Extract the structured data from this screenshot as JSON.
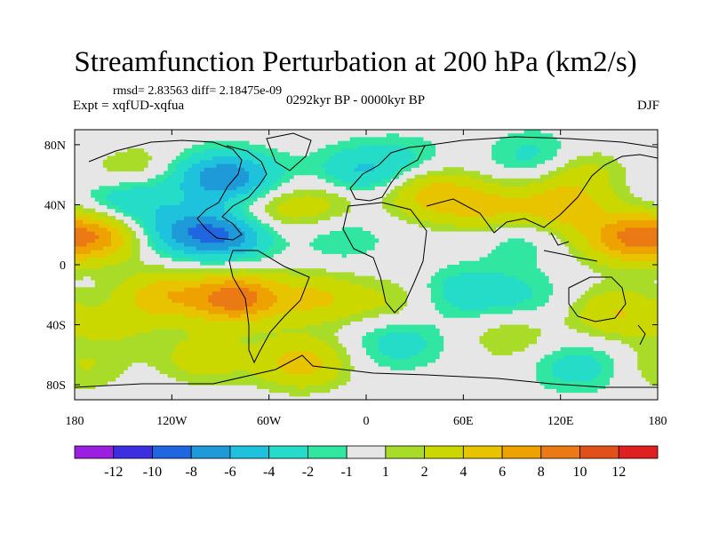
{
  "title": "Streamfunction Perturbation at 200 hPa (km2/s)",
  "stats_line": "rmsd= 2.83563 diff= 2.18475e-09",
  "experiment_line": "Expt = xqfUD-xqfua",
  "period_line": "0292kyr BP - 0000kyr BP",
  "season": "DJF",
  "chart_data": {
    "type": "heatmap",
    "title": "Streamfunction Perturbation at 200 hPa (km2/s)",
    "xlim": [
      -180,
      180
    ],
    "ylim": [
      -90,
      90
    ],
    "x_ticks": [
      {
        "value": -180,
        "label": "180"
      },
      {
        "value": -120,
        "label": "120W"
      },
      {
        "value": -60,
        "label": "60W"
      },
      {
        "value": 0,
        "label": "0"
      },
      {
        "value": 60,
        "label": "60E"
      },
      {
        "value": 120,
        "label": "120E"
      },
      {
        "value": 180,
        "label": "180"
      }
    ],
    "y_ticks": [
      {
        "value": 80,
        "label": "80N"
      },
      {
        "value": 40,
        "label": "40N"
      },
      {
        "value": 0,
        "label": "0"
      },
      {
        "value": -40,
        "label": "40S"
      },
      {
        "value": -80,
        "label": "80S"
      }
    ],
    "levels": [
      -12,
      -10,
      -8,
      -6,
      -4,
      -2,
      -1,
      1,
      2,
      4,
      6,
      8,
      10,
      12
    ],
    "level_labels": [
      "-12",
      "-10",
      "-8",
      "-6",
      "-4",
      "-2",
      "-1",
      "1",
      "2",
      "4",
      "6",
      "8",
      "10",
      "12"
    ],
    "colors": [
      "#9b1fe0",
      "#3b2fe0",
      "#1f66e0",
      "#1e9ad8",
      "#1ec2dc",
      "#24dcc8",
      "#30e6a0",
      "#e6e6e6",
      "#a8dc28",
      "#cad800",
      "#e8c400",
      "#eea200",
      "#ec7a14",
      "#e2501a",
      "#e02020"
    ],
    "field_centers": [
      {
        "lon": -165,
        "lat": 20,
        "value": 7
      },
      {
        "lon": 160,
        "lat": 18,
        "value": 7
      },
      {
        "lon": -148,
        "lat": 42,
        "value": -4
      },
      {
        "lon": -150,
        "lat": 68,
        "value": 3.5
      },
      {
        "lon": -95,
        "lat": 58,
        "value": -5
      },
      {
        "lon": -75,
        "lat": 58,
        "value": -4
      },
      {
        "lon": -85,
        "lat": 20,
        "value": -7
      },
      {
        "lon": -115,
        "lat": 22,
        "value": -5
      },
      {
        "lon": -60,
        "lat": 36,
        "value": 3
      },
      {
        "lon": -25,
        "lat": 42,
        "value": 2.5
      },
      {
        "lon": -5,
        "lat": 62,
        "value": -4
      },
      {
        "lon": 25,
        "lat": 70,
        "value": -2
      },
      {
        "lon": 40,
        "lat": 48,
        "value": 5
      },
      {
        "lon": 75,
        "lat": 38,
        "value": 4
      },
      {
        "lon": 120,
        "lat": 38,
        "value": 5
      },
      {
        "lon": 130,
        "lat": 62,
        "value": 3
      },
      {
        "lon": 105,
        "lat": 72,
        "value": -3
      },
      {
        "lon": -160,
        "lat": 76,
        "value": -2
      },
      {
        "lon": -15,
        "lat": 18,
        "value": -2
      },
      {
        "lon": 95,
        "lat": 18,
        "value": -2
      },
      {
        "lon": -80,
        "lat": -22,
        "value": 9
      },
      {
        "lon": -125,
        "lat": -20,
        "value": 5
      },
      {
        "lon": -155,
        "lat": -40,
        "value": 2
      },
      {
        "lon": -30,
        "lat": -22,
        "value": 4
      },
      {
        "lon": 15,
        "lat": -25,
        "value": 2
      },
      {
        "lon": 60,
        "lat": -18,
        "value": -3
      },
      {
        "lon": 95,
        "lat": -20,
        "value": -2
      },
      {
        "lon": 155,
        "lat": -32,
        "value": 4
      },
      {
        "lon": 90,
        "lat": -48,
        "value": 2
      },
      {
        "lon": 20,
        "lat": -52,
        "value": -3
      },
      {
        "lon": -40,
        "lat": -65,
        "value": 5
      },
      {
        "lon": -100,
        "lat": -62,
        "value": 3
      },
      {
        "lon": -175,
        "lat": -68,
        "value": 2
      },
      {
        "lon": 130,
        "lat": -68,
        "value": -3
      }
    ]
  }
}
